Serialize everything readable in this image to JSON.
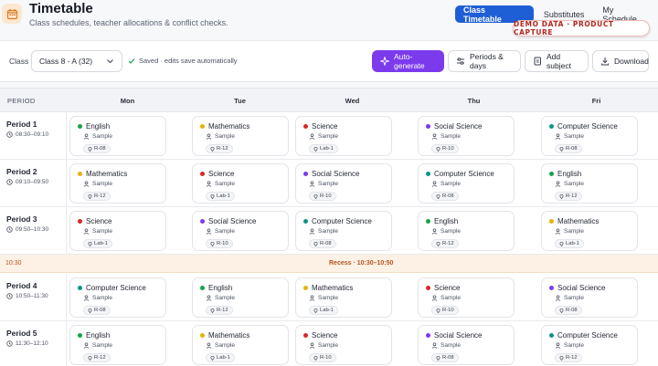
{
  "header": {
    "title": "Timetable",
    "subtitle": "Class schedules, teacher allocations & conflict checks.",
    "tabs": [
      "Class Timetable",
      "Substitutes",
      "My Schedule"
    ],
    "active_tab": "Class Timetable",
    "demo_badge": "DEMO DATA · PRODUCT CAPTURE"
  },
  "toolbar": {
    "class_label": "Class",
    "class_value": "Class 8 - A (32)",
    "saved_text": "Saved · edits save automatically",
    "auto_generate": "Auto-generate",
    "periods_days": "Periods & days",
    "add_subject": "Add subject",
    "download": "Download"
  },
  "grid": {
    "period_header": "PERIOD",
    "days": [
      "Mon",
      "Tue",
      "Wed",
      "Thu",
      "Fri"
    ],
    "teacher": "Sample",
    "recess": {
      "time": "10:30",
      "label": "Recess · 10:30–10:50"
    },
    "colors": {
      "English": "#16a34a",
      "Mathematics": "#e8b10c",
      "Science": "#dc2626",
      "Social Science": "#7c3aed",
      "Computer Science": "#0d9488"
    },
    "periods": [
      {
        "name": "Period 1",
        "time": "08:30–09:10",
        "cells": [
          {
            "subject": "English",
            "room": "R-08"
          },
          {
            "subject": "Mathematics",
            "room": "R-12"
          },
          {
            "subject": "Science",
            "room": "Lab-1"
          },
          {
            "subject": "Social Science",
            "room": "R-10"
          },
          {
            "subject": "Computer Science",
            "room": "R-08"
          }
        ]
      },
      {
        "name": "Period 2",
        "time": "09:10–09:50",
        "cells": [
          {
            "subject": "Mathematics",
            "room": "R-12"
          },
          {
            "subject": "Science",
            "room": "Lab-1"
          },
          {
            "subject": "Social Science",
            "room": "R-10"
          },
          {
            "subject": "Computer Science",
            "room": "R-08"
          },
          {
            "subject": "English",
            "room": "R-12"
          }
        ]
      },
      {
        "name": "Period 3",
        "time": "09:50–10:30",
        "cells": [
          {
            "subject": "Science",
            "room": "Lab-1"
          },
          {
            "subject": "Social Science",
            "room": "R-10"
          },
          {
            "subject": "Computer Science",
            "room": "R-08"
          },
          {
            "subject": "English",
            "room": "R-12"
          },
          {
            "subject": "Mathematics",
            "room": "Lab-1"
          }
        ]
      },
      {
        "name": "Period 4",
        "time": "10:50–11:30",
        "cells": [
          {
            "subject": "Computer Science",
            "room": "R-08"
          },
          {
            "subject": "English",
            "room": "R-12"
          },
          {
            "subject": "Mathematics",
            "room": "Lab-1"
          },
          {
            "subject": "Science",
            "room": "R-10"
          },
          {
            "subject": "Social Science",
            "room": "R-08"
          }
        ]
      },
      {
        "name": "Period 5",
        "time": "11:30–12:10",
        "cells": [
          {
            "subject": "English",
            "room": "R-12"
          },
          {
            "subject": "Mathematics",
            "room": "Lab-1"
          },
          {
            "subject": "Science",
            "room": "R-10"
          },
          {
            "subject": "Social Science",
            "room": "R-08"
          },
          {
            "subject": "Computer Science",
            "room": "R-12"
          }
        ]
      }
    ]
  }
}
